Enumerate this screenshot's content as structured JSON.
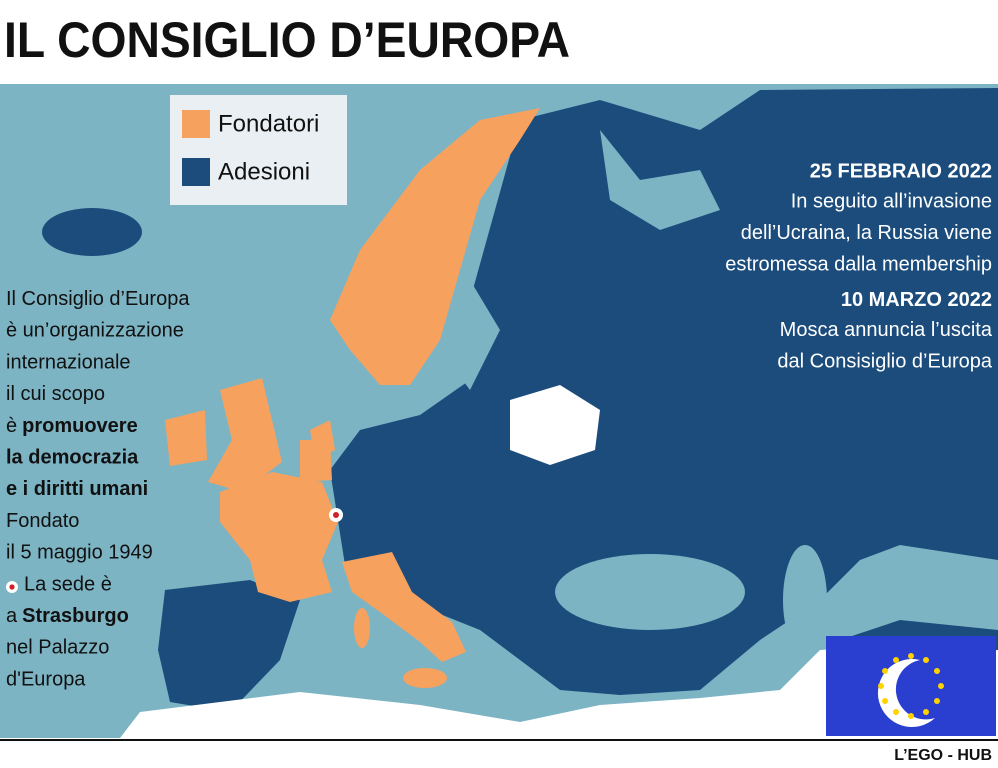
{
  "header": {
    "title": "IL CONSIGLIO D’EUROPA"
  },
  "legend": [
    {
      "label": "Fondatori",
      "color": "#f6a15e"
    },
    {
      "label": "Adesioni",
      "color": "#1b4c7c"
    }
  ],
  "intro": [
    [
      {
        "text": "Il Consiglio d’Europa"
      }
    ],
    [
      {
        "text": "è un’organizzazione"
      }
    ],
    [
      {
        "text": "internazionale"
      }
    ],
    [
      {
        "text": "il cui scopo"
      }
    ],
    [
      {
        "text": "è"
      },
      {
        "text": "promuovere",
        "bold": true
      }
    ],
    [
      {
        "text": "la democrazia",
        "bold": true
      }
    ],
    [
      {
        "text": "e i diritti umani",
        "bold": true
      }
    ],
    [
      {
        "text": "Fondato"
      }
    ],
    [
      {
        "text": "il 5 maggio 1949"
      }
    ],
    [
      {
        "text": "La sede è"
      }
    ],
    [
      {
        "text": "a"
      },
      {
        "text": "Strasburgo",
        "bold": true
      }
    ],
    [
      {
        "text": "nel Palazzo"
      }
    ],
    [
      {
        "text": "d'Europa"
      }
    ]
  ],
  "events": [
    {
      "date": "25 FEBBRAIO 2022",
      "lines": [
        "In seguito all’invasione",
        "dell’Ucraina, la Russia viene",
        "estromessa dalla membership"
      ]
    },
    {
      "date": "10 MARZO 2022",
      "lines": [
        "Mosca annuncia l’uscita",
        "dal Consisiglio d’Europa"
      ]
    }
  ],
  "footer": {
    "credit": "L’EGO - HUB"
  }
}
